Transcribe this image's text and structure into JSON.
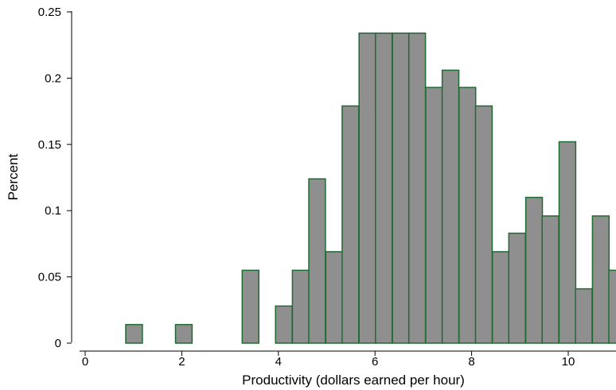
{
  "chart_data": {
    "type": "bar",
    "title": "",
    "xlabel": "Productivity (dollars earned per hour)",
    "ylabel": "Percent",
    "bin_width": 0.345,
    "bins": [
      {
        "x0": 0.84,
        "value": 0.014
      },
      {
        "x0": 1.87,
        "value": 0.014
      },
      {
        "x0": 3.25,
        "value": 0.055
      },
      {
        "x0": 3.94,
        "value": 0.028
      },
      {
        "x0": 4.29,
        "value": 0.055
      },
      {
        "x0": 4.63,
        "value": 0.124
      },
      {
        "x0": 4.98,
        "value": 0.069
      },
      {
        "x0": 5.32,
        "value": 0.179
      },
      {
        "x0": 5.67,
        "value": 0.234
      },
      {
        "x0": 6.01,
        "value": 0.234
      },
      {
        "x0": 6.36,
        "value": 0.234
      },
      {
        "x0": 6.7,
        "value": 0.234
      },
      {
        "x0": 7.05,
        "value": 0.193
      },
      {
        "x0": 7.39,
        "value": 0.206
      },
      {
        "x0": 7.74,
        "value": 0.193
      },
      {
        "x0": 8.08,
        "value": 0.179
      },
      {
        "x0": 8.43,
        "value": 0.069
      },
      {
        "x0": 8.77,
        "value": 0.083
      },
      {
        "x0": 9.12,
        "value": 0.11
      },
      {
        "x0": 9.46,
        "value": 0.096
      },
      {
        "x0": 9.81,
        "value": 0.152
      },
      {
        "x0": 10.15,
        "value": 0.041
      },
      {
        "x0": 10.5,
        "value": 0.096
      },
      {
        "x0": 10.84,
        "value": 0.055
      }
    ],
    "xlim": [
      -0.1,
      11.0
    ],
    "ylim": [
      0,
      0.25
    ],
    "xticks": [
      0,
      2,
      4,
      6,
      8,
      10
    ],
    "xtick_labels": [
      "0",
      "2",
      "4",
      "6",
      "8",
      "10"
    ],
    "yticks": [
      0,
      0.05,
      0.1,
      0.15,
      0.2,
      0.25
    ],
    "ytick_labels": [
      "0",
      "0.05",
      "0.1",
      "0.15",
      "0.2",
      "0.25"
    ],
    "grid": false,
    "bar_fill": "#8f8f8f",
    "bar_edge": "#1e6b32"
  }
}
